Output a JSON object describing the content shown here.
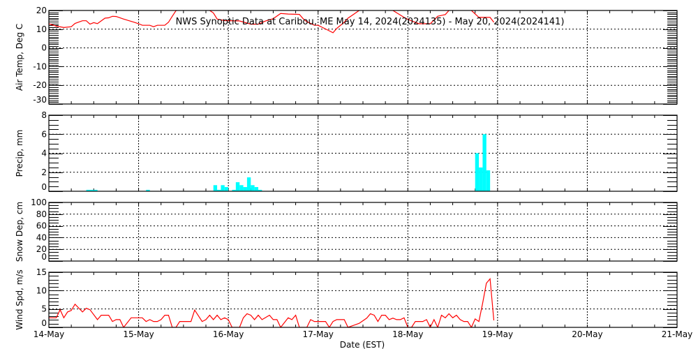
{
  "chart_data": {
    "title": "NWS Synoptic Data at Caribou, ME   May 14, 2024(2024135) - May 20, 2024(2024141)",
    "xlabel": "Date (EST)",
    "x_ticks": [
      "14-May",
      "15-May",
      "16-May",
      "17-May",
      "18-May",
      "19-May",
      "20-May",
      "21-May"
    ],
    "x_range": [
      "2024-05-14 00:00",
      "2024-05-21 00:00"
    ],
    "grid": true,
    "panels": [
      {
        "type": "line",
        "ylabel": "Air Temp, Deg C",
        "ylim": [
          -30,
          20
        ],
        "y_ticks": [
          "20",
          "10",
          "0",
          "-10",
          "-20",
          "-30"
        ],
        "color": "#ff0000",
        "points": [
          [
            "2024-05-14 00:00",
            12.9
          ],
          [
            "2024-05-14 02:00",
            11.6
          ],
          [
            "2024-05-14 04:00",
            10.9
          ],
          [
            "2024-05-14 06:00",
            11.3
          ],
          [
            "2024-05-14 07:00",
            13.1
          ],
          [
            "2024-05-14 09:00",
            14.5
          ],
          [
            "2024-05-14 10:00",
            14.5
          ],
          [
            "2024-05-14 11:00",
            12.7
          ],
          [
            "2024-05-14 12:00",
            13.5
          ],
          [
            "2024-05-14 13:00",
            13.0
          ],
          [
            "2024-05-14 15:00",
            15.9
          ],
          [
            "2024-05-14 16:00",
            16.1
          ],
          [
            "2024-05-14 17:00",
            16.9
          ],
          [
            "2024-05-14 18:00",
            16.8
          ],
          [
            "2024-05-14 20:00",
            15.4
          ],
          [
            "2024-05-14 23:00",
            13.6
          ],
          [
            "2024-05-15 00:00",
            12.9
          ],
          [
            "2024-05-15 01:00",
            12.1
          ],
          [
            "2024-05-15 03:00",
            12.1
          ],
          [
            "2024-05-15 04:00",
            11.3
          ],
          [
            "2024-05-15 05:00",
            12.1
          ],
          [
            "2024-05-15 07:00",
            12.1
          ],
          [
            "2024-05-15 08:00",
            13.7
          ],
          [
            "2024-05-15 09:00",
            16.9
          ],
          [
            "2024-05-15 10:00",
            19.9
          ],
          [
            "2024-05-15 11:00",
            20.5
          ],
          [
            "2024-05-15 13:00",
            22.0
          ],
          [
            "2024-05-15 17:00",
            21.0
          ],
          [
            "2024-05-15 19:00",
            20.0
          ],
          [
            "2024-05-15 20:00",
            18.7
          ],
          [
            "2024-05-15 21:00",
            15.4
          ],
          [
            "2024-05-15 23:00",
            14.6
          ],
          [
            "2024-05-16 03:00",
            14.4
          ],
          [
            "2024-05-16 06:00",
            12.7
          ],
          [
            "2024-05-16 08:00",
            12.7
          ],
          [
            "2024-05-16 10:00",
            14.4
          ],
          [
            "2024-05-16 12:00",
            15.6
          ],
          [
            "2024-05-16 14:00",
            18.4
          ],
          [
            "2024-05-16 16:00",
            18.1
          ],
          [
            "2024-05-16 19:00",
            17.9
          ],
          [
            "2024-05-16 20:00",
            15.6
          ],
          [
            "2024-05-16 21:00",
            14.0
          ],
          [
            "2024-05-16 23:00",
            12.1
          ],
          [
            "2024-05-17 00:00",
            12.1
          ],
          [
            "2024-05-17 02:00",
            10.1
          ],
          [
            "2024-05-17 04:00",
            8.1
          ],
          [
            "2024-05-17 05:00",
            10.4
          ],
          [
            "2024-05-17 07:00",
            13.7
          ],
          [
            "2024-05-17 08:00",
            15.9
          ],
          [
            "2024-05-17 11:00",
            20.0
          ],
          [
            "2024-05-17 14:00",
            22.0
          ],
          [
            "2024-05-17 18:00",
            21.0
          ],
          [
            "2024-05-17 20:00",
            20.0
          ],
          [
            "2024-05-17 23:00",
            16.3
          ],
          [
            "2024-05-18 01:00",
            14.4
          ],
          [
            "2024-05-18 03:00",
            12.9
          ],
          [
            "2024-05-18 06:00",
            12.9
          ],
          [
            "2024-05-18 08:00",
            16.9
          ],
          [
            "2024-05-18 10:00",
            17.8
          ],
          [
            "2024-05-18 11:00",
            20.0
          ],
          [
            "2024-05-18 14:00",
            21.0
          ],
          [
            "2024-05-18 17:00",
            20.0
          ],
          [
            "2024-05-18 19:00",
            16.3
          ],
          [
            "2024-05-18 22:00",
            16.3
          ],
          [
            "2024-05-18 23:00",
            13.7
          ]
        ]
      },
      {
        "type": "bar",
        "ylabel": "Precip, mm",
        "ylim": [
          0,
          8
        ],
        "y_ticks": [
          "8",
          "6",
          "4",
          "2",
          "0"
        ],
        "color": "#00ffff",
        "points": [
          [
            "2024-05-14 10:00",
            0.15
          ],
          [
            "2024-05-14 11:00",
            0.15
          ],
          [
            "2024-05-14 12:00",
            0.15
          ],
          [
            "2024-05-15 02:00",
            0.15
          ],
          [
            "2024-05-15 20:00",
            0.64
          ],
          [
            "2024-05-15 21:00",
            0.15
          ],
          [
            "2024-05-15 22:00",
            0.64
          ],
          [
            "2024-05-15 23:00",
            0.44
          ],
          [
            "2024-05-16 01:00",
            0.15
          ],
          [
            "2024-05-16 02:00",
            0.95
          ],
          [
            "2024-05-16 03:00",
            0.64
          ],
          [
            "2024-05-16 04:00",
            0.44
          ],
          [
            "2024-05-16 05:00",
            1.46
          ],
          [
            "2024-05-16 06:00",
            0.64
          ],
          [
            "2024-05-16 07:00",
            0.44
          ],
          [
            "2024-05-16 08:00",
            0.15
          ],
          [
            "2024-05-18 18:00",
            4.0
          ],
          [
            "2024-05-18 19:00",
            2.5
          ],
          [
            "2024-05-18 20:00",
            6.0
          ],
          [
            "2024-05-18 21:00",
            2.2
          ]
        ]
      },
      {
        "type": "line",
        "ylabel": "Snow Dep, cm",
        "ylim": [
          0,
          100
        ],
        "y_ticks": [
          "100",
          "80",
          "60",
          "40",
          "20",
          "0"
        ],
        "color": "#ff0000",
        "points": []
      },
      {
        "type": "line",
        "ylabel": "Wind Spd, m/s",
        "ylim": [
          0,
          15
        ],
        "y_ticks": [
          "15",
          "10",
          "5",
          "0"
        ],
        "color": "#ff0000",
        "points": [
          [
            "2024-05-14 00:00",
            2.6
          ],
          [
            "2024-05-14 02:00",
            2.6
          ],
          [
            "2024-05-14 03:00",
            4.8
          ],
          [
            "2024-05-14 04:00",
            2.6
          ],
          [
            "2024-05-14 05:00",
            4.2
          ],
          [
            "2024-05-14 06:00",
            4.6
          ],
          [
            "2024-05-14 07:00",
            6.3
          ],
          [
            "2024-05-14 09:00",
            4.2
          ],
          [
            "2024-05-14 10:00",
            5.2
          ],
          [
            "2024-05-14 11:00",
            4.8
          ],
          [
            "2024-05-14 13:00",
            2.1
          ],
          [
            "2024-05-14 14:00",
            3.3
          ],
          [
            "2024-05-14 16:00",
            3.3
          ],
          [
            "2024-05-14 17:00",
            1.6
          ],
          [
            "2024-05-14 18:00",
            2.1
          ],
          [
            "2024-05-14 19:00",
            2.1
          ],
          [
            "2024-05-14 20:00",
            0
          ],
          [
            "2024-05-14 22:00",
            2.6
          ],
          [
            "2024-05-15 01:00",
            2.6
          ],
          [
            "2024-05-15 02:00",
            1.6
          ],
          [
            "2024-05-15 03:00",
            2.1
          ],
          [
            "2024-05-15 04:00",
            1.6
          ],
          [
            "2024-05-15 05:00",
            1.6
          ],
          [
            "2024-05-15 06:00",
            2.1
          ],
          [
            "2024-05-15 07:00",
            3.3
          ],
          [
            "2024-05-15 08:00",
            3.3
          ],
          [
            "2024-05-15 09:00",
            0
          ],
          [
            "2024-05-15 10:00",
            0
          ],
          [
            "2024-05-15 11:00",
            1.6
          ],
          [
            "2024-05-15 14:00",
            1.6
          ],
          [
            "2024-05-15 15:00",
            4.7
          ],
          [
            "2024-05-15 17:00",
            1.6
          ],
          [
            "2024-05-15 18:00",
            2.1
          ],
          [
            "2024-05-15 19:00",
            3.3
          ],
          [
            "2024-05-15 20:00",
            2.1
          ],
          [
            "2024-05-15 21:00",
            3.3
          ],
          [
            "2024-05-15 22:00",
            2.1
          ],
          [
            "2024-05-15 23:00",
            2.6
          ],
          [
            "2024-05-16 00:00",
            2.1
          ],
          [
            "2024-05-16 01:00",
            0
          ],
          [
            "2024-05-16 03:00",
            0
          ],
          [
            "2024-05-16 04:00",
            2.6
          ],
          [
            "2024-05-16 05:00",
            3.7
          ],
          [
            "2024-05-16 06:00",
            3.3
          ],
          [
            "2024-05-16 07:00",
            2.1
          ],
          [
            "2024-05-16 08:00",
            3.3
          ],
          [
            "2024-05-16 09:00",
            2.1
          ],
          [
            "2024-05-16 11:00",
            3.3
          ],
          [
            "2024-05-16 12:00",
            2.1
          ],
          [
            "2024-05-16 13:00",
            2.1
          ],
          [
            "2024-05-16 14:00",
            0
          ],
          [
            "2024-05-16 16:00",
            2.6
          ],
          [
            "2024-05-16 17:00",
            2.1
          ],
          [
            "2024-05-16 18:00",
            3.3
          ],
          [
            "2024-05-16 19:00",
            0
          ],
          [
            "2024-05-16 21:00",
            0
          ],
          [
            "2024-05-16 22:00",
            2.1
          ],
          [
            "2024-05-16 23:00",
            1.6
          ],
          [
            "2024-05-17 02:00",
            1.6
          ],
          [
            "2024-05-17 03:00",
            0
          ],
          [
            "2024-05-17 04:00",
            1.6
          ],
          [
            "2024-05-17 05:00",
            2.1
          ],
          [
            "2024-05-17 07:00",
            2.1
          ],
          [
            "2024-05-17 08:00",
            0
          ],
          [
            "2024-05-17 11:00",
            1.1
          ],
          [
            "2024-05-17 13:00",
            2.5
          ],
          [
            "2024-05-17 14:00",
            3.7
          ],
          [
            "2024-05-17 15:00",
            3.3
          ],
          [
            "2024-05-17 16:00",
            1.6
          ],
          [
            "2024-05-17 17:00",
            3.3
          ],
          [
            "2024-05-17 18:00",
            3.3
          ],
          [
            "2024-05-17 19:00",
            2.1
          ],
          [
            "2024-05-17 20:00",
            2.5
          ],
          [
            "2024-05-17 21:00",
            2.1
          ],
          [
            "2024-05-17 22:00",
            2.1
          ],
          [
            "2024-05-17 23:00",
            2.6
          ],
          [
            "2024-05-18 00:00",
            0
          ],
          [
            "2024-05-18 01:00",
            0
          ],
          [
            "2024-05-18 02:00",
            1.6
          ],
          [
            "2024-05-18 04:00",
            1.6
          ],
          [
            "2024-05-18 05:00",
            2.1
          ],
          [
            "2024-05-18 06:00",
            0
          ],
          [
            "2024-05-18 07:00",
            2.1
          ],
          [
            "2024-05-18 08:00",
            0
          ],
          [
            "2024-05-18 09:00",
            3.3
          ],
          [
            "2024-05-18 10:00",
            2.6
          ],
          [
            "2024-05-18 11:00",
            3.7
          ],
          [
            "2024-05-18 12:00",
            2.6
          ],
          [
            "2024-05-18 13:00",
            3.3
          ],
          [
            "2024-05-18 14:00",
            2.1
          ],
          [
            "2024-05-18 15:00",
            1.6
          ],
          [
            "2024-05-18 16:00",
            1.6
          ],
          [
            "2024-05-18 17:00",
            0
          ],
          [
            "2024-05-18 18:00",
            2.3
          ],
          [
            "2024-05-18 19:00",
            1.6
          ],
          [
            "2024-05-18 20:00",
            6.5
          ],
          [
            "2024-05-18 21:00",
            12.0
          ],
          [
            "2024-05-18 22:00",
            13.2
          ],
          [
            "2024-05-18 23:00",
            1.9
          ]
        ]
      }
    ]
  }
}
